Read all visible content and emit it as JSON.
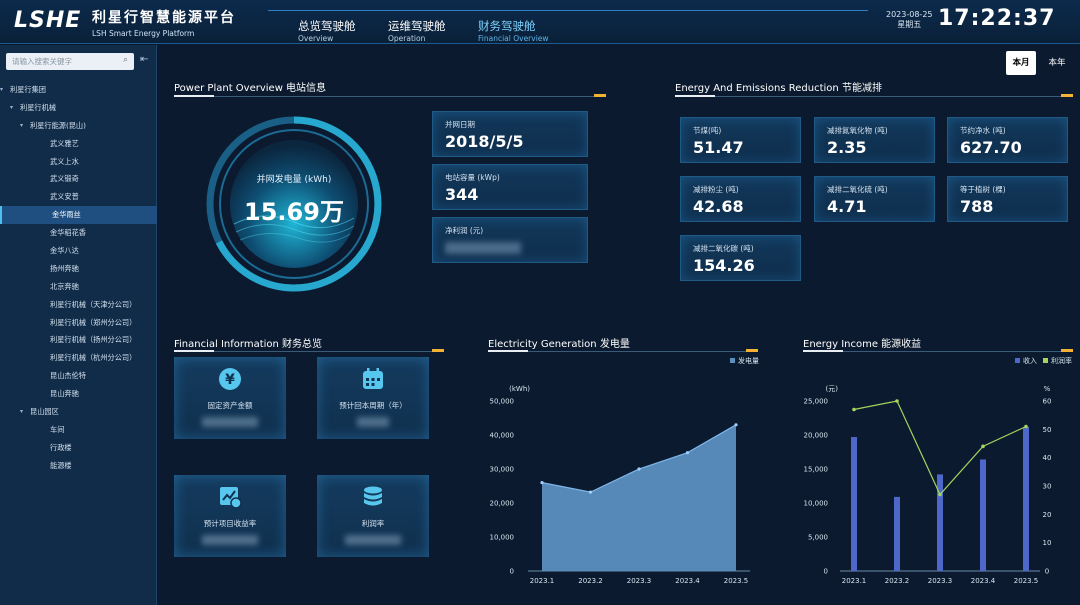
{
  "header": {
    "logo": "LSHE",
    "title_cn": "利星行智慧能源平台",
    "title_en": "LSH Smart Energy Platform",
    "nav": [
      {
        "cn": "总览驾驶舱",
        "en": "Overview"
      },
      {
        "cn": "运维驾驶舱",
        "en": "Operation"
      },
      {
        "cn": "财务驾驶舱",
        "en": "Financial Overview"
      }
    ],
    "date": "2023-08-25",
    "weekday": "星期五",
    "time": "17:22:37"
  },
  "sidebar": {
    "search_placeholder": "请输入搜索关键字",
    "tree": [
      {
        "label": "利星行集团",
        "level": 0,
        "expanded": true
      },
      {
        "label": "利星行机械",
        "level": 1,
        "expanded": true
      },
      {
        "label": "利星行能源(昆山)",
        "level": 2,
        "expanded": true
      },
      {
        "label": "武义雅艺",
        "level": 3
      },
      {
        "label": "武义上水",
        "level": 3
      },
      {
        "label": "武义锻奇",
        "level": 3
      },
      {
        "label": "武义安普",
        "level": 3
      },
      {
        "label": "金华雨丝",
        "level": 3,
        "selected": true
      },
      {
        "label": "金华稻花香",
        "level": 3
      },
      {
        "label": "金华八达",
        "level": 3
      },
      {
        "label": "扬州奔驰",
        "level": 3
      },
      {
        "label": "北京奔驰",
        "level": 3
      },
      {
        "label": "利星行机械（天津分公司）",
        "level": 3
      },
      {
        "label": "利星行机械（郑州分公司）",
        "level": 3
      },
      {
        "label": "利星行机械（扬州分公司）",
        "level": 3
      },
      {
        "label": "利星行机械（杭州分公司）",
        "level": 3
      },
      {
        "label": "昆山杰伦特",
        "level": 3
      },
      {
        "label": "昆山奔驰",
        "level": 3
      },
      {
        "label": "昆山园区",
        "level": 2,
        "expanded": true
      },
      {
        "label": "车间",
        "level": 3
      },
      {
        "label": "行政楼",
        "level": 3
      },
      {
        "label": "能源楼",
        "level": 3
      }
    ]
  },
  "period": {
    "month": "本月",
    "year": "本年"
  },
  "power_plant": {
    "title": "Power Plant Overview 电站信息",
    "ring_label": "并网发电量 (kWh)",
    "ring_value": "15.69万",
    "cards": [
      {
        "label": "并网日期",
        "value": "2018/5/5"
      },
      {
        "label": "电站容量 (kWp)",
        "value": "344"
      },
      {
        "label": "净利润 (元)",
        "value": ""
      }
    ]
  },
  "energy": {
    "title": "Energy And Emissions Reduction 节能减排",
    "cards": [
      {
        "label": "节煤(吨)",
        "value": "51.47"
      },
      {
        "label": "减排氮氧化物 (吨)",
        "value": "2.35"
      },
      {
        "label": "节约净水 (吨)",
        "value": "627.70"
      },
      {
        "label": "减排粉尘 (吨)",
        "value": "42.68"
      },
      {
        "label": "减排二氧化硫 (吨)",
        "value": "4.71"
      },
      {
        "label": "等于植树 (棵)",
        "value": "788"
      },
      {
        "label": "减排二氧化碳 (吨)",
        "value": "154.26"
      }
    ]
  },
  "financial": {
    "title": "Financial Information 财务总览",
    "items": [
      {
        "label": "固定资产金额",
        "icon": "yen-icon"
      },
      {
        "label": "预计回本周期（年）",
        "icon": "calendar-icon"
      },
      {
        "label": "预计项目收益率",
        "icon": "chart-icon"
      },
      {
        "label": "利润率",
        "icon": "database-icon"
      }
    ]
  },
  "generation": {
    "title": "Electricity Generation 发电量",
    "legend": "发电量",
    "unit": "(kWh)"
  },
  "income": {
    "title": "Energy Income 能源收益",
    "legend": [
      "收入",
      "利润率"
    ],
    "unit_left": "(元)",
    "unit_right": "%"
  },
  "chart_data": [
    {
      "type": "area",
      "categories": [
        "2023.1",
        "2023.2",
        "2023.3",
        "2023.4",
        "2023.5"
      ],
      "series": [
        {
          "name": "发电量",
          "values": [
            26000,
            23200,
            30000,
            34800,
            43000
          ]
        }
      ],
      "ylabel": "(kWh)",
      "ylim": [
        0,
        50000
      ],
      "yticks": [
        "0",
        "10,000",
        "20,000",
        "30,000",
        "40,000",
        "50,000"
      ],
      "color": "#5b8fc0",
      "legend_position": "top-right"
    },
    {
      "type": "bar",
      "categories": [
        "2023.1",
        "2023.2",
        "2023.3",
        "2023.4",
        "2023.5"
      ],
      "series": [
        {
          "name": "收入",
          "type": "bar",
          "axis": "left",
          "values": [
            19700,
            10900,
            14200,
            16400,
            21200
          ]
        },
        {
          "name": "利润率",
          "type": "line",
          "axis": "right",
          "values": [
            57,
            60,
            27,
            44,
            51
          ]
        }
      ],
      "ylabel": "(元)",
      "ylim": [
        0,
        25000
      ],
      "yticks": [
        "0",
        "5,000",
        "10,000",
        "15,000",
        "20,000",
        "25,000"
      ],
      "y2label": "%",
      "y2lim": [
        0,
        60
      ],
      "y2ticks": [
        "0",
        "10",
        "20",
        "30",
        "40",
        "50",
        "60"
      ],
      "colors": {
        "bar": "#4d68c9",
        "line": "#a4d65e"
      },
      "legend_position": "top-right"
    }
  ]
}
